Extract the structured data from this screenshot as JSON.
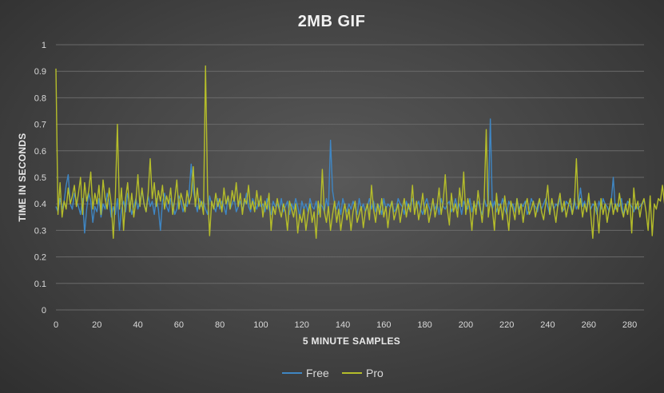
{
  "chart_data": {
    "type": "line",
    "title": "2MB GIF",
    "xlabel": "5 MINUTE SAMPLES",
    "ylabel": "TIME IN SECONDS",
    "xlim": [
      0,
      287
    ],
    "ylim": [
      0,
      1
    ],
    "x_ticks": [
      "0",
      "20",
      "40",
      "60",
      "80",
      "100",
      "120",
      "140",
      "160",
      "180",
      "200",
      "220",
      "240",
      "260",
      "280"
    ],
    "y_ticks": [
      "0",
      "0.1",
      "0.2",
      "0.3",
      "0.4",
      "0.5",
      "0.6",
      "0.7",
      "0.8",
      "0.9",
      "1"
    ],
    "grid": true,
    "legend": "bottom",
    "series": [
      {
        "name": "Free",
        "color": "#3f86c3",
        "values": [
          0.39,
          0.37,
          0.42,
          0.38,
          0.41,
          0.47,
          0.51,
          0.4,
          0.38,
          0.44,
          0.41,
          0.39,
          0.36,
          0.42,
          0.29,
          0.38,
          0.44,
          0.41,
          0.33,
          0.39,
          0.37,
          0.42,
          0.35,
          0.4,
          0.38,
          0.44,
          0.41,
          0.35,
          0.39,
          0.36,
          0.42,
          0.3,
          0.38,
          0.41,
          0.37,
          0.44,
          0.4,
          0.36,
          0.39,
          0.42,
          0.38,
          0.41,
          0.45,
          0.4,
          0.37,
          0.43,
          0.39,
          0.41,
          0.36,
          0.42,
          0.38,
          0.3,
          0.41,
          0.44,
          0.39,
          0.37,
          0.42,
          0.4,
          0.36,
          0.38,
          0.43,
          0.41,
          0.37,
          0.4,
          0.39,
          0.44,
          0.55,
          0.45,
          0.41,
          0.37,
          0.42,
          0.39,
          0.41,
          0.38,
          0.36,
          0.43,
          0.4,
          0.39,
          0.37,
          0.42,
          0.38,
          0.41,
          0.39,
          0.36,
          0.43,
          0.38,
          0.4,
          0.42,
          0.37,
          0.39,
          0.41,
          0.38,
          0.4,
          0.44,
          0.39,
          0.37,
          0.42,
          0.4,
          0.38,
          0.41,
          0.39,
          0.4,
          0.37,
          0.42,
          0.38,
          0.36,
          0.41,
          0.39,
          0.4,
          0.38,
          0.42,
          0.37,
          0.39,
          0.41,
          0.36,
          0.4,
          0.38,
          0.42,
          0.39,
          0.35,
          0.41,
          0.38,
          0.4,
          0.37,
          0.42,
          0.39,
          0.38,
          0.41,
          0.36,
          0.4,
          0.39,
          0.37,
          0.42,
          0.38,
          0.64,
          0.45,
          0.4,
          0.38,
          0.41,
          0.36,
          0.42,
          0.39,
          0.37,
          0.4,
          0.38,
          0.41,
          0.39,
          0.36,
          0.42,
          0.38,
          0.4,
          0.37,
          0.39,
          0.42,
          0.38,
          0.41,
          0.37,
          0.4,
          0.39,
          0.36,
          0.42,
          0.38,
          0.4,
          0.39,
          0.41,
          0.37,
          0.38,
          0.42,
          0.4,
          0.39,
          0.36,
          0.41,
          0.38,
          0.4,
          0.42,
          0.37,
          0.39,
          0.41,
          0.38,
          0.36,
          0.4,
          0.42,
          0.39,
          0.37,
          0.41,
          0.38,
          0.4,
          0.36,
          0.42,
          0.39,
          0.38,
          0.4,
          0.41,
          0.37,
          0.39,
          0.42,
          0.38,
          0.4,
          0.36,
          0.41,
          0.39,
          0.38,
          0.42,
          0.37,
          0.4,
          0.39,
          0.41,
          0.38,
          0.36,
          0.42,
          0.39,
          0.4,
          0.72,
          0.38,
          0.41,
          0.37,
          0.4,
          0.39,
          0.42,
          0.38,
          0.36,
          0.41,
          0.39,
          0.4,
          0.37,
          0.42,
          0.38,
          0.4,
          0.39,
          0.41,
          0.36,
          0.38,
          0.42,
          0.4,
          0.39,
          0.37,
          0.41,
          0.38,
          0.4,
          0.42,
          0.39,
          0.36,
          0.41,
          0.38,
          0.4,
          0.39,
          0.42,
          0.37,
          0.38,
          0.41,
          0.4,
          0.39,
          0.36,
          0.42,
          0.38,
          0.4,
          0.46,
          0.39,
          0.41,
          0.37,
          0.42,
          0.38,
          0.4,
          0.39,
          0.36,
          0.41,
          0.38,
          0.42,
          0.4,
          0.39,
          0.37,
          0.41,
          0.5,
          0.38,
          0.4,
          0.39,
          0.42,
          0.36,
          0.38,
          0.41,
          0.4,
          0.39,
          0.37,
          0.4,
          0.38,
          0.39,
          0.4,
          0.41
        ]
      },
      {
        "name": "Pro",
        "color": "#b5bd2a",
        "values": [
          0.91,
          0.36,
          0.48,
          0.35,
          0.41,
          0.38,
          0.46,
          0.4,
          0.43,
          0.47,
          0.39,
          0.44,
          0.5,
          0.36,
          0.48,
          0.41,
          0.45,
          0.52,
          0.38,
          0.44,
          0.4,
          0.47,
          0.36,
          0.49,
          0.42,
          0.38,
          0.46,
          0.4,
          0.27,
          0.43,
          0.7,
          0.38,
          0.46,
          0.3,
          0.42,
          0.48,
          0.37,
          0.44,
          0.35,
          0.41,
          0.51,
          0.39,
          0.46,
          0.4,
          0.37,
          0.44,
          0.57,
          0.42,
          0.48,
          0.39,
          0.45,
          0.41,
          0.47,
          0.38,
          0.43,
          0.4,
          0.46,
          0.36,
          0.42,
          0.49,
          0.38,
          0.44,
          0.41,
          0.37,
          0.45,
          0.4,
          0.43,
          0.54,
          0.39,
          0.46,
          0.38,
          0.41,
          0.36,
          0.92,
          0.45,
          0.28,
          0.41,
          0.38,
          0.44,
          0.39,
          0.42,
          0.37,
          0.46,
          0.4,
          0.43,
          0.38,
          0.45,
          0.41,
          0.48,
          0.39,
          0.44,
          0.36,
          0.42,
          0.4,
          0.47,
          0.38,
          0.41,
          0.37,
          0.45,
          0.39,
          0.43,
          0.35,
          0.41,
          0.38,
          0.44,
          0.3,
          0.39,
          0.36,
          0.42,
          0.38,
          0.35,
          0.4,
          0.37,
          0.3,
          0.41,
          0.38,
          0.35,
          0.4,
          0.29,
          0.36,
          0.33,
          0.38,
          0.3,
          0.36,
          0.4,
          0.33,
          0.37,
          0.27,
          0.41,
          0.35,
          0.53,
          0.37,
          0.33,
          0.39,
          0.3,
          0.36,
          0.41,
          0.33,
          0.38,
          0.3,
          0.36,
          0.4,
          0.34,
          0.38,
          0.3,
          0.37,
          0.41,
          0.33,
          0.36,
          0.39,
          0.31,
          0.37,
          0.4,
          0.34,
          0.47,
          0.38,
          0.33,
          0.4,
          0.36,
          0.42,
          0.35,
          0.39,
          0.31,
          0.38,
          0.41,
          0.34,
          0.37,
          0.4,
          0.33,
          0.38,
          0.42,
          0.35,
          0.4,
          0.37,
          0.47,
          0.36,
          0.41,
          0.34,
          0.38,
          0.44,
          0.36,
          0.4,
          0.33,
          0.37,
          0.42,
          0.35,
          0.39,
          0.46,
          0.36,
          0.41,
          0.51,
          0.38,
          0.32,
          0.44,
          0.37,
          0.4,
          0.35,
          0.46,
          0.39,
          0.52,
          0.36,
          0.42,
          0.38,
          0.3,
          0.41,
          0.36,
          0.45,
          0.39,
          0.33,
          0.42,
          0.68,
          0.35,
          0.41,
          0.38,
          0.3,
          0.44,
          0.36,
          0.4,
          0.34,
          0.43,
          0.37,
          0.3,
          0.41,
          0.38,
          0.34,
          0.42,
          0.36,
          0.4,
          0.33,
          0.39,
          0.42,
          0.36,
          0.38,
          0.41,
          0.35,
          0.39,
          0.42,
          0.37,
          0.34,
          0.4,
          0.47,
          0.36,
          0.42,
          0.38,
          0.33,
          0.4,
          0.44,
          0.37,
          0.41,
          0.35,
          0.39,
          0.42,
          0.36,
          0.4,
          0.57,
          0.38,
          0.42,
          0.35,
          0.4,
          0.37,
          0.44,
          0.36,
          0.27,
          0.41,
          0.38,
          0.29,
          0.42,
          0.36,
          0.4,
          0.33,
          0.38,
          0.42,
          0.36,
          0.4,
          0.37,
          0.44,
          0.38,
          0.35,
          0.4,
          0.36,
          0.42,
          0.29,
          0.46,
          0.38,
          0.41,
          0.35,
          0.4,
          0.42,
          0.37,
          0.3,
          0.43,
          0.28,
          0.4,
          0.38,
          0.42,
          0.41,
          0.47,
          0.4,
          0.42
        ]
      }
    ]
  }
}
